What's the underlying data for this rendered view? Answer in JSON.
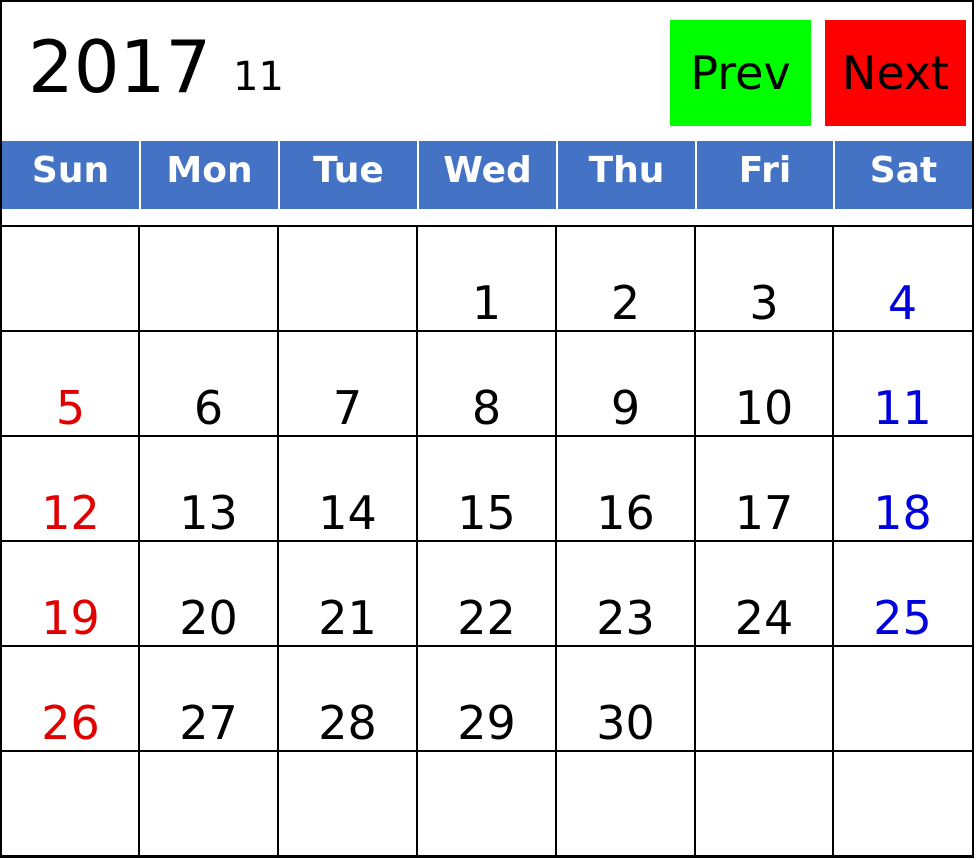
{
  "header": {
    "year": "2017",
    "month": "11"
  },
  "nav": {
    "prev_label": "Prev",
    "next_label": "Next",
    "prev_color": "#00ff00",
    "next_color": "#ff0000"
  },
  "weekday_header_color": "#4472c4",
  "weekdays": [
    "Sun",
    "Mon",
    "Tue",
    "Wed",
    "Thu",
    "Fri",
    "Sat"
  ],
  "weeks": [
    [
      "",
      "",
      "",
      "1",
      "2",
      "3",
      "4"
    ],
    [
      "5",
      "6",
      "7",
      "8",
      "9",
      "10",
      "11"
    ],
    [
      "12",
      "13",
      "14",
      "15",
      "16",
      "17",
      "18"
    ],
    [
      "19",
      "20",
      "21",
      "22",
      "23",
      "24",
      "25"
    ],
    [
      "26",
      "27",
      "28",
      "29",
      "30",
      "",
      ""
    ],
    [
      "",
      "",
      "",
      "",
      "",
      "",
      ""
    ]
  ],
  "colors": {
    "sunday": "#e00000",
    "saturday": "#0000dd",
    "weekday": "#000000"
  }
}
